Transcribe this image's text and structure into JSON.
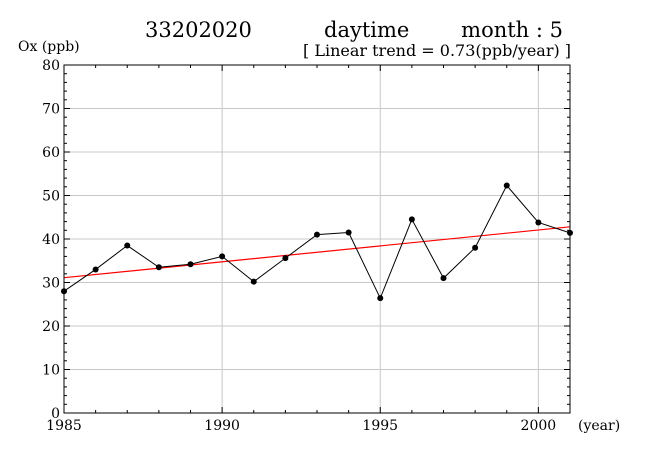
{
  "header": {
    "station": "33202020",
    "period": "daytime",
    "month": "month : 5",
    "trend": "[ Linear trend = 0.73(ppb/year) ]"
  },
  "chart_data": {
    "type": "line",
    "title": "",
    "xlabel": "(year)",
    "ylabel": "Ox (ppb)",
    "xlim": [
      1985,
      2001
    ],
    "ylim": [
      0,
      80
    ],
    "x_ticks": [
      1985,
      1990,
      1995,
      2000
    ],
    "y_ticks": [
      0,
      10,
      20,
      30,
      40,
      50,
      60,
      70,
      80
    ],
    "grid": true,
    "series": [
      {
        "color": "#000000",
        "x": [
          1985,
          1986,
          1987,
          1988,
          1989,
          1990,
          1991,
          1992,
          1993,
          1994,
          1995,
          1996,
          1997,
          1998,
          1999,
          2000,
          2001
        ],
        "values": [
          28.0,
          33.0,
          38.5,
          33.5,
          34.2,
          36.0,
          30.2,
          35.6,
          41.0,
          41.5,
          26.4,
          44.5,
          31.0,
          38.0,
          52.3,
          43.8,
          41.4
        ]
      }
    ],
    "trend_line": {
      "color": "#ff0000",
      "slope": 0.73,
      "x": [
        1985,
        2001
      ],
      "values": [
        31.1,
        42.8
      ]
    }
  }
}
